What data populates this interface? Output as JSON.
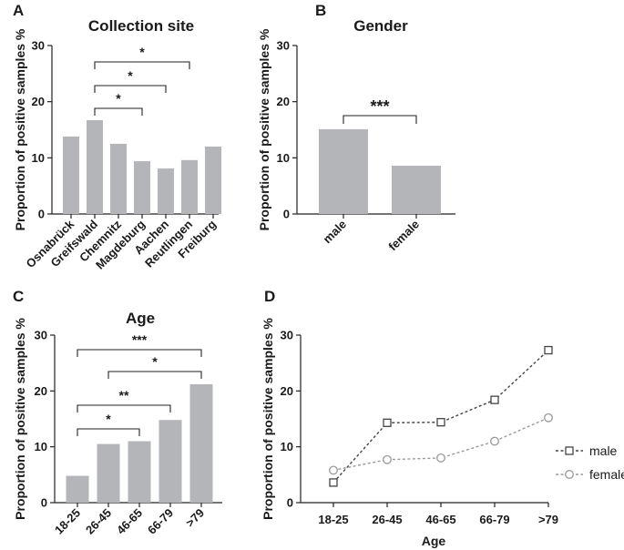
{
  "chart_data": [
    {
      "panel": "A",
      "type": "bar",
      "title": "Collection site",
      "xlabel": "",
      "ylabel": "Proportion of positive samples %",
      "ylim": [
        0,
        30
      ],
      "yticks": [
        0,
        10,
        20,
        30
      ],
      "categories": [
        "Osnabrück",
        "Greifswald",
        "Chemnitz",
        "Magdeburg",
        "Aachen",
        "Reutlingen",
        "Freiburg"
      ],
      "values": [
        13.8,
        16.7,
        12.5,
        9.4,
        8.1,
        9.6,
        12.0
      ],
      "bar_color": "#b3b5b8",
      "significance": [
        {
          "from": 1,
          "to": 3,
          "label": "*"
        },
        {
          "from": 1,
          "to": 4,
          "label": "*"
        },
        {
          "from": 1,
          "to": 5,
          "label": "*"
        }
      ]
    },
    {
      "panel": "B",
      "type": "bar",
      "title": "Gender",
      "xlabel": "",
      "ylabel": "Proportion of positive samples %",
      "ylim": [
        0,
        30
      ],
      "yticks": [
        0,
        10,
        20,
        30
      ],
      "categories": [
        "male",
        "female"
      ],
      "values": [
        15.1,
        8.6
      ],
      "bar_color": "#b3b5b8",
      "significance": [
        {
          "from": 0,
          "to": 1,
          "label": "***"
        }
      ]
    },
    {
      "panel": "C",
      "type": "bar",
      "title": "Age",
      "xlabel": "",
      "ylabel": "Proportion of positive samples %",
      "ylim": [
        0,
        30
      ],
      "yticks": [
        0,
        10,
        20,
        30
      ],
      "categories": [
        "18-25",
        "26-45",
        "46-65",
        "66-79",
        ">79"
      ],
      "values": [
        4.8,
        10.5,
        11.0,
        14.8,
        21.2
      ],
      "bar_color": "#b3b5b8",
      "significance": [
        {
          "from": 0,
          "to": 2,
          "label": "*"
        },
        {
          "from": 0,
          "to": 3,
          "label": "**"
        },
        {
          "from": 1,
          "to": 4,
          "label": "*"
        },
        {
          "from": 0,
          "to": 4,
          "label": "***"
        }
      ]
    },
    {
      "panel": "D",
      "type": "line",
      "title": "",
      "xlabel": "Age",
      "ylabel": "Proportion of positive samples %",
      "ylim": [
        0,
        30
      ],
      "yticks": [
        0,
        10,
        20,
        30
      ],
      "categories": [
        "18-25",
        "26-45",
        "46-65",
        "66-79",
        ">79"
      ],
      "series": [
        {
          "name": "male",
          "values": [
            3.6,
            14.3,
            14.4,
            18.4,
            27.3
          ],
          "color": "#444444",
          "marker": "square"
        },
        {
          "name": "female",
          "values": [
            5.8,
            7.7,
            8.0,
            11.0,
            15.2
          ],
          "color": "#9a9a9a",
          "marker": "circle"
        }
      ],
      "legend": "right"
    }
  ]
}
